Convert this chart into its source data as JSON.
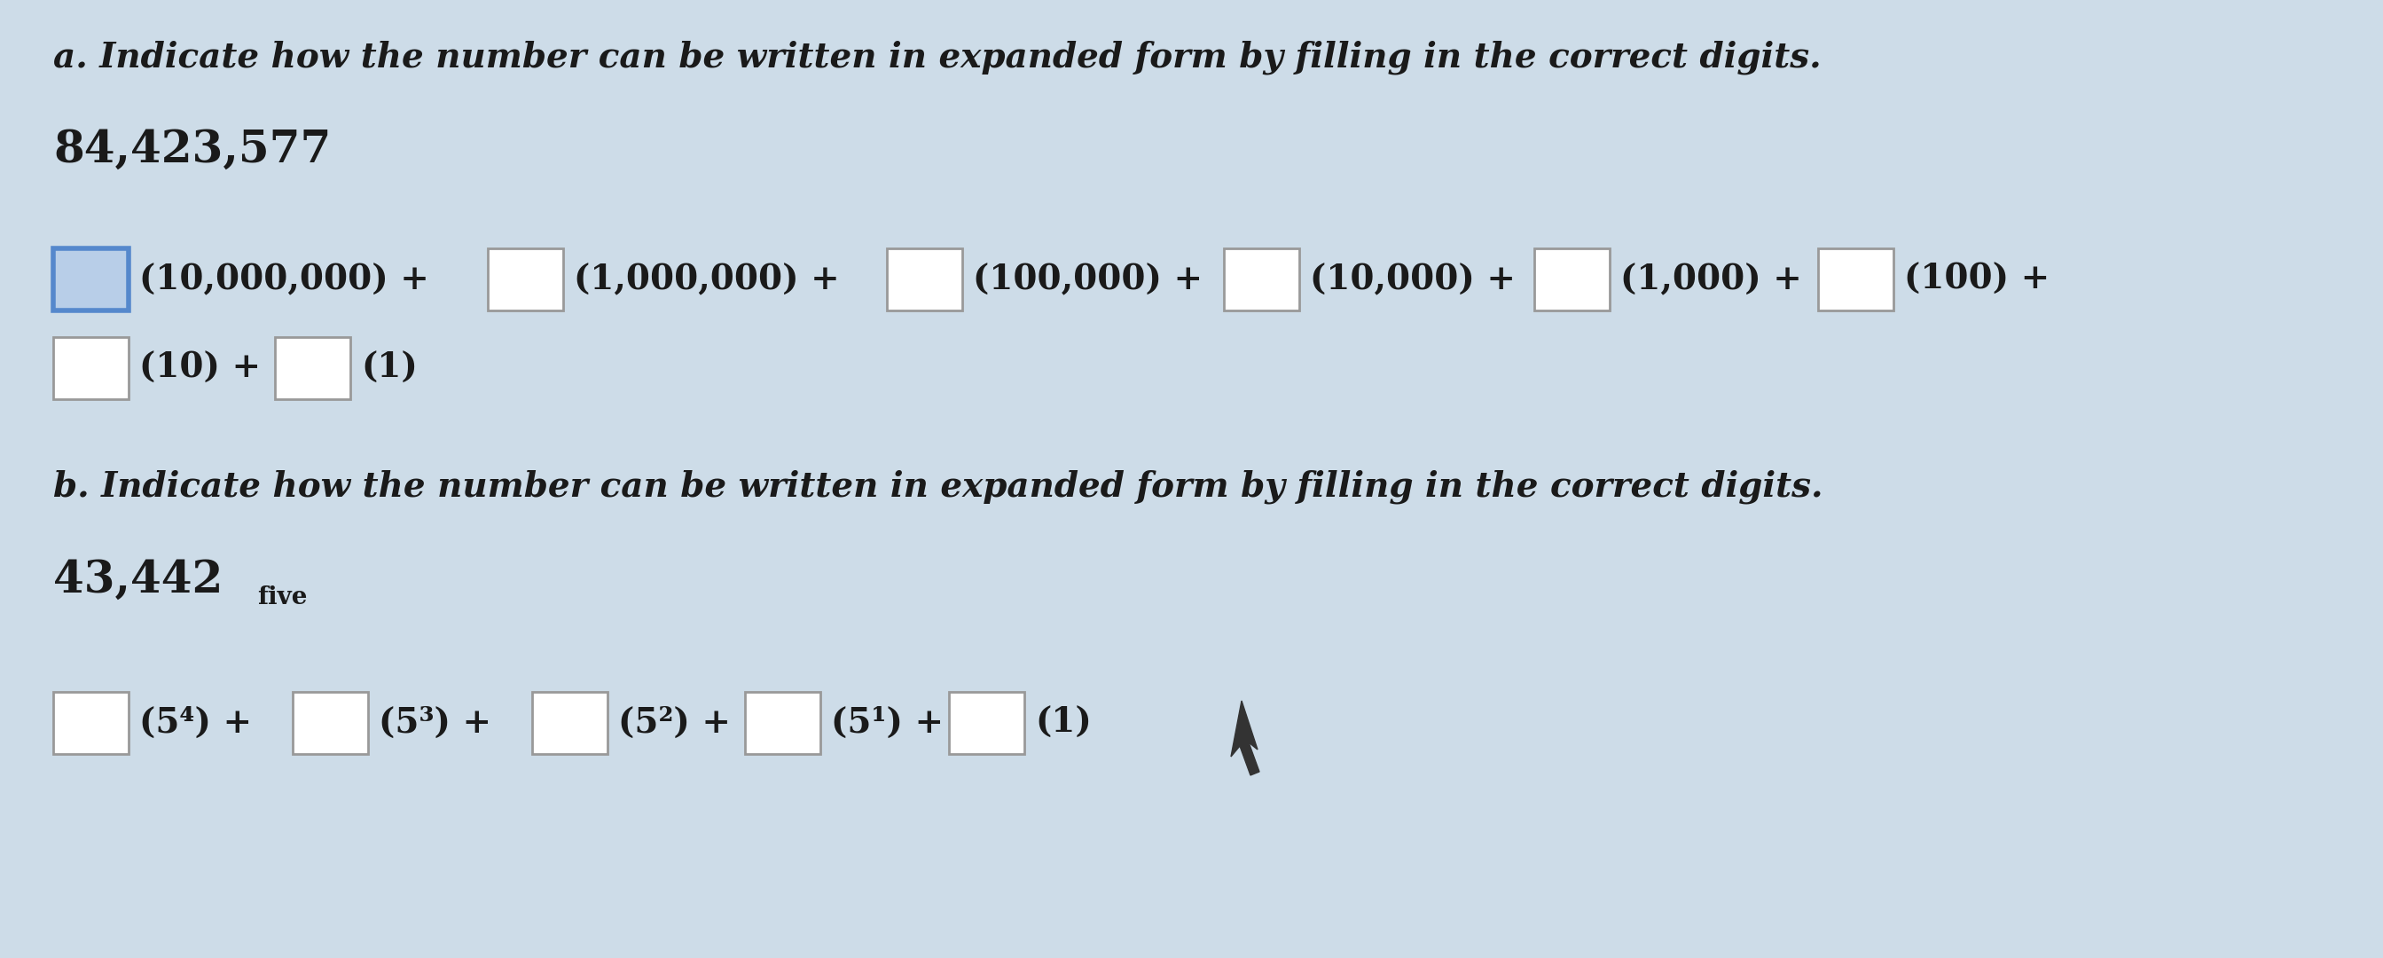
{
  "bg_color": "#cddce8",
  "text_color": "#1a1a1a",
  "box_color": "#ffffff",
  "box_border_color": "#999999",
  "first_box_border_color": "#5588cc",
  "first_box_fill": "#b8cee8",
  "section_a_title": "a. Indicate how the number can be written in expanded form by filling in the correct digits.",
  "section_a_number": "84,423,577",
  "section_b_title": "b. Indicate how the number can be written in expanded form by filling in the correct digits.",
  "section_b_number_main": "43,442",
  "section_b_number_sub": "five",
  "row1_labels": [
    "(10,000,000) +",
    "(1,000,000) +",
    "(100,000) +",
    "(10,000) +",
    "(1,000) +",
    "(100) +"
  ],
  "row2_labels": [
    "(10) +",
    "(1)"
  ],
  "row_b_labels": [
    "(5⁴) +",
    "(5³) +",
    "(5²) +",
    "(5¹) +",
    "(1)"
  ]
}
